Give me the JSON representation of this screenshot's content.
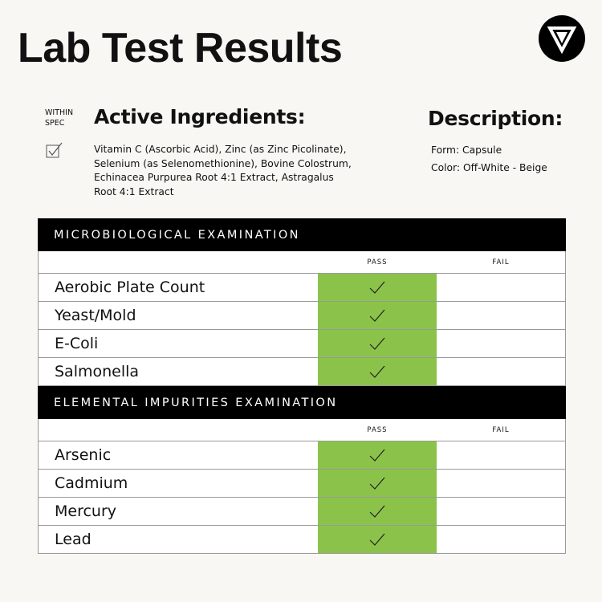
{
  "header": {
    "title": "Lab Test Results"
  },
  "spec": {
    "label": "WITHIN SPEC"
  },
  "active_ingredients": {
    "heading": "Active Ingredients:",
    "text": "Vitamin C (Ascorbic Acid), Zinc (as Zinc Picolinate), Selenium (as Selenomethionine), Bovine Colostrum, Echinacea Purpurea Root 4:1 Extract, Astragalus Root 4:1 Extract"
  },
  "description": {
    "heading": "Description:",
    "items": [
      "Form: Capsule",
      "Color: Off-White - Beige"
    ]
  },
  "sections": [
    {
      "title": "MICROBIOLOGICAL EXAMINATION",
      "columns": [
        "PASS",
        "FAIL"
      ],
      "rows": [
        "Aerobic Plate Count",
        "Yeast/Mold",
        "E-Coli",
        "Salmonella"
      ]
    },
    {
      "title": "ELEMENTAL IMPURITIES EXAMINATION",
      "columns": [
        "PASS",
        "FAIL"
      ],
      "rows": [
        "Arsenic",
        "Cadmium",
        "Mercury",
        "Lead"
      ]
    }
  ]
}
